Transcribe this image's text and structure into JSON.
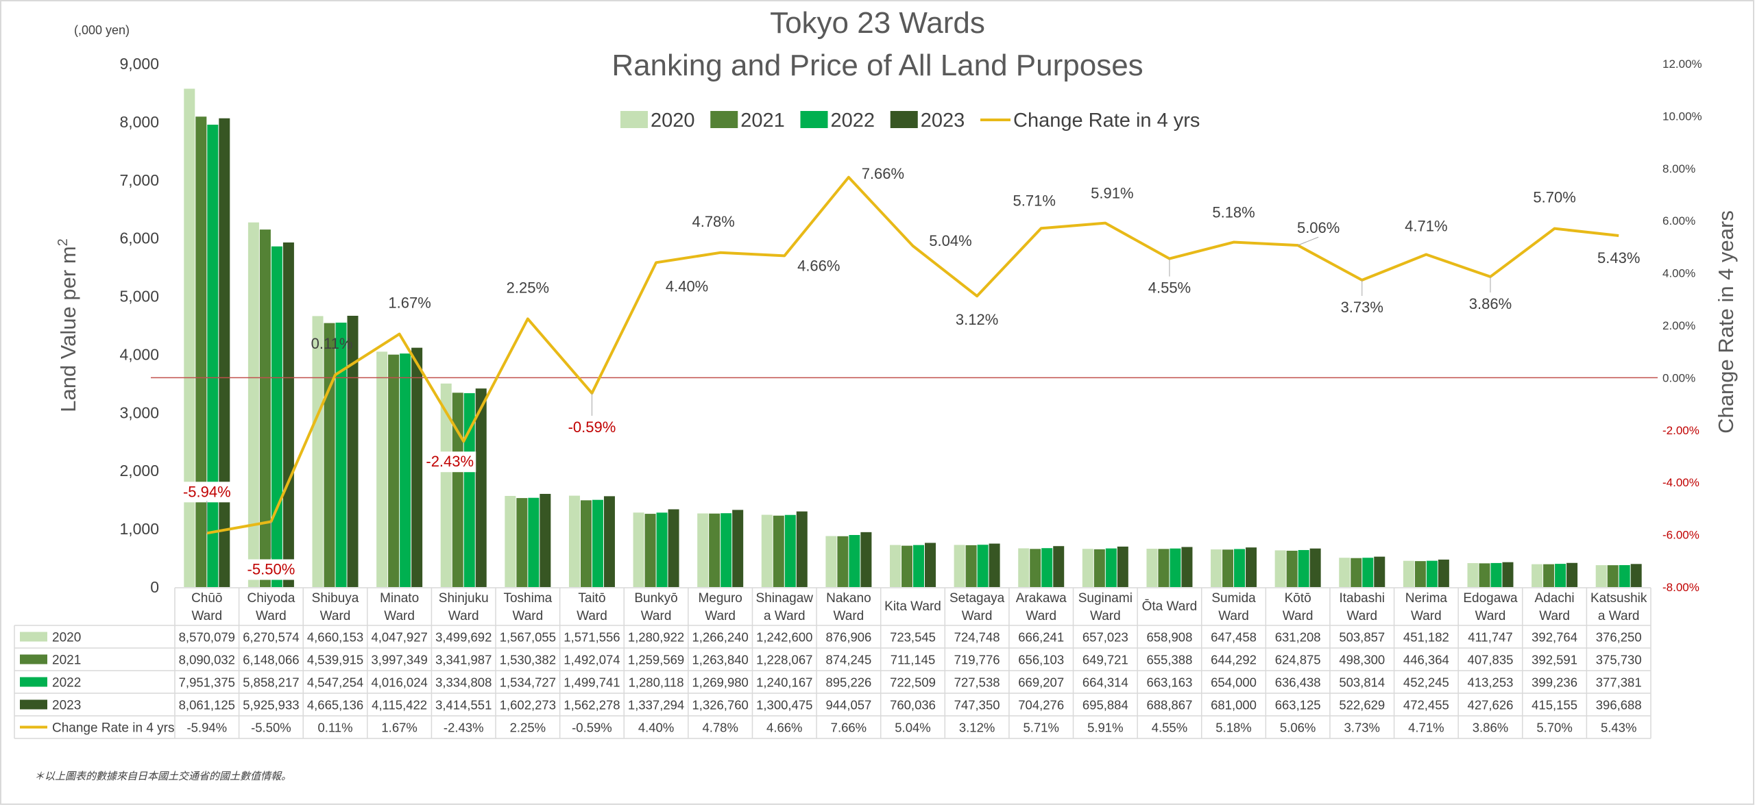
{
  "chart_data": {
    "type": "bar",
    "title_line1": "Tokyo 23 Wards",
    "title_line2": "Ranking and Price of All Land Purposes",
    "unit_label": "(,000 yen)",
    "ylabel_prefix": "Land Value per m",
    "ylabel_superscript": "2",
    "y2label": "Change Rate in 4 years",
    "ylim": [
      0,
      9000
    ],
    "y_ticks": [
      "0",
      "1,000",
      "2,000",
      "3,000",
      "4,000",
      "5,000",
      "6,000",
      "7,000",
      "8,000",
      "9,000"
    ],
    "y2lim": [
      -0.08,
      0.12
    ],
    "y2_ticks": [
      "-8.00%",
      "-6.00%",
      "-4.00%",
      "-2.00%",
      "0.00%",
      "2.00%",
      "4.00%",
      "6.00%",
      "8.00%",
      "10.00%",
      "12.00%"
    ],
    "legend_position": "top",
    "categories": [
      [
        "Chūō",
        "Ward"
      ],
      [
        "Chiyoda",
        "Ward"
      ],
      [
        "Shibuya",
        "Ward"
      ],
      [
        "Minato",
        "Ward"
      ],
      [
        "Shinjuku",
        "Ward"
      ],
      [
        "Toshima",
        "Ward"
      ],
      [
        "Taitō",
        "Ward"
      ],
      [
        "Bunkyō",
        "Ward"
      ],
      [
        "Meguro",
        "Ward"
      ],
      [
        "Shinagaw",
        "a Ward"
      ],
      [
        "Nakano",
        "Ward"
      ],
      [
        "Kita Ward"
      ],
      [
        "Setagaya",
        "Ward"
      ],
      [
        "Arakawa",
        "Ward"
      ],
      [
        "Suginami",
        "Ward"
      ],
      [
        "Ōta Ward"
      ],
      [
        "Sumida",
        "Ward"
      ],
      [
        "Kōtō",
        "Ward"
      ],
      [
        "Itabashi",
        "Ward"
      ],
      [
        "Nerima",
        "Ward"
      ],
      [
        "Edogawa",
        "Ward"
      ],
      [
        "Adachi",
        "Ward"
      ],
      [
        "Katsushik",
        "a Ward"
      ]
    ],
    "series": [
      {
        "name": "2020",
        "color": "#c5e0b4",
        "values": [
          8570079,
          6270574,
          4660153,
          4047927,
          3499692,
          1567055,
          1571556,
          1280922,
          1266240,
          1242600,
          876906,
          723545,
          724748,
          666241,
          657023,
          658908,
          647458,
          631208,
          503857,
          451182,
          411747,
          392764,
          376250
        ],
        "labels": [
          "8,570,079",
          "6,270,574",
          "4,660,153",
          "4,047,927",
          "3,499,692",
          "1,567,055",
          "1,571,556",
          "1,280,922",
          "1,266,240",
          "1,242,600",
          "876,906",
          "723,545",
          "724,748",
          "666,241",
          "657,023",
          "658,908",
          "647,458",
          "631,208",
          "503,857",
          "451,182",
          "411,747",
          "392,764",
          "376,250"
        ]
      },
      {
        "name": "2021",
        "color": "#548235",
        "values": [
          8090032,
          6148066,
          4539915,
          3997349,
          3341987,
          1530382,
          1492074,
          1259569,
          1263840,
          1228067,
          874245,
          711145,
          719776,
          656103,
          649721,
          655388,
          644292,
          624875,
          498300,
          446364,
          407835,
          392591,
          375730
        ],
        "labels": [
          "8,090,032",
          "6,148,066",
          "4,539,915",
          "3,997,349",
          "3,341,987",
          "1,530,382",
          "1,492,074",
          "1,259,569",
          "1,263,840",
          "1,228,067",
          "874,245",
          "711,145",
          "719,776",
          "656,103",
          "649,721",
          "655,388",
          "644,292",
          "624,875",
          "498,300",
          "446,364",
          "407,835",
          "392,591",
          "375,730"
        ]
      },
      {
        "name": "2022",
        "color": "#00b050",
        "values": [
          7951375,
          5858217,
          4547254,
          4016024,
          3334808,
          1534727,
          1499741,
          1280118,
          1269980,
          1240167,
          895226,
          722509,
          727538,
          669207,
          664314,
          663163,
          654000,
          636438,
          503814,
          452245,
          413253,
          399236,
          377381
        ],
        "labels": [
          "7,951,375",
          "5,858,217",
          "4,547,254",
          "4,016,024",
          "3,334,808",
          "1,534,727",
          "1,499,741",
          "1,280,118",
          "1,269,980",
          "1,240,167",
          "895,226",
          "722,509",
          "727,538",
          "669,207",
          "664,314",
          "663,163",
          "654,000",
          "636,438",
          "503,814",
          "452,245",
          "413,253",
          "399,236",
          "377,381"
        ]
      },
      {
        "name": "2023",
        "color": "#375623",
        "values": [
          8061125,
          5925933,
          4665136,
          4115422,
          3414551,
          1602273,
          1562278,
          1337294,
          1326760,
          1300475,
          944057,
          760036,
          747350,
          704276,
          695884,
          688867,
          681000,
          663125,
          522629,
          472455,
          427626,
          415155,
          396688
        ],
        "labels": [
          "8,061,125",
          "5,925,933",
          "4,665,136",
          "4,115,422",
          "3,414,551",
          "1,602,273",
          "1,562,278",
          "1,337,294",
          "1,326,760",
          "1,300,475",
          "944,057",
          "760,036",
          "747,350",
          "704,276",
          "695,884",
          "688,867",
          "681,000",
          "663,125",
          "522,629",
          "472,455",
          "427,626",
          "415,155",
          "396,688"
        ]
      }
    ],
    "line_series": {
      "name": "Change Rate in 4 yrs",
      "color": "#e8b917",
      "values": [
        -0.0594,
        -0.055,
        0.0011,
        0.0167,
        -0.0243,
        0.0225,
        -0.0059,
        0.044,
        0.0478,
        0.0466,
        0.0766,
        0.0504,
        0.0312,
        0.0571,
        0.0591,
        0.0455,
        0.0518,
        0.0506,
        0.0373,
        0.0471,
        0.0386,
        0.057,
        0.0543
      ],
      "labels": [
        "-5.94%",
        "-5.50%",
        "0.11%",
        "1.67%",
        "-2.43%",
        "2.25%",
        "-0.59%",
        "4.40%",
        "4.78%",
        "4.66%",
        "7.66%",
        "5.04%",
        "3.12%",
        "5.71%",
        "5.91%",
        "4.55%",
        "5.18%",
        "5.06%",
        "3.73%",
        "4.71%",
        "3.86%",
        "5.70%",
        "5.43%"
      ]
    },
    "zero_line_color": "#c0504d",
    "negative_label_color": "#c00000",
    "footnote": "＊以上圖表的數據來自日本國土交通省的國土數值情報。"
  }
}
